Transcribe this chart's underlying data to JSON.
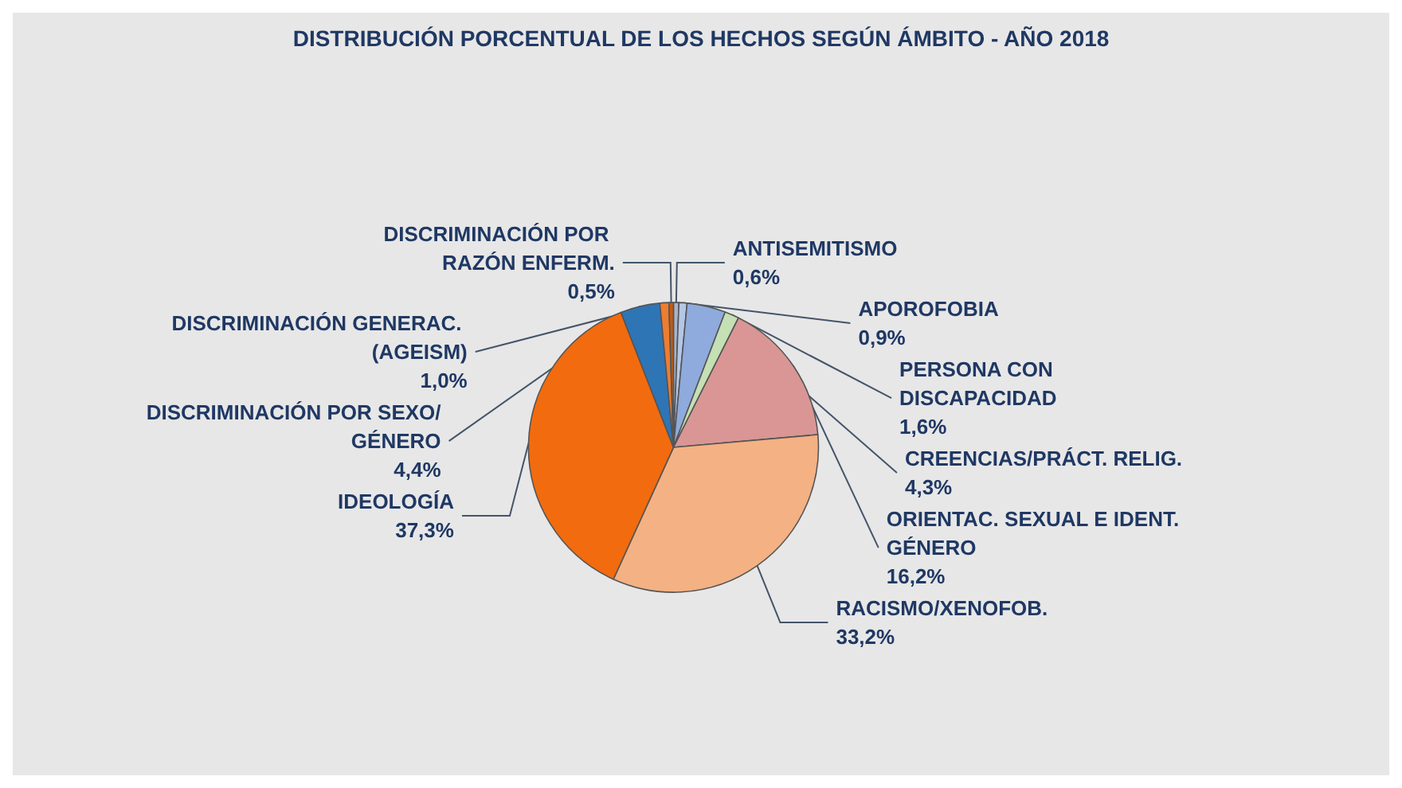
{
  "chart_data": {
    "type": "pie",
    "title": "DISTRIBUCIÓN PORCENTUAL DE LOS HECHOS SEGÚN ÁMBITO - AÑO 2018",
    "categories": [
      "ANTISEMITISMO",
      "APOROFOBIA",
      "CREENCIAS/PRÁCT. RELIG.",
      "PERSONA CON DISCAPACIDAD",
      "ORIENTAC. SEXUAL E IDENT. GÉNERO",
      "RACISMO/XENOFOB.",
      "IDEOLOGÍA",
      "DISCRIMINACIÓN POR SEXO/GÉNERO",
      "DISCRIMINACIÓN GENERAC. (AGEISM)",
      "DISCRIMINACIÓN POR RAZÓN ENFERM."
    ],
    "values": [
      0.6,
      0.9,
      4.3,
      1.6,
      16.2,
      33.2,
      37.3,
      4.4,
      1.0,
      0.5
    ],
    "value_labels": [
      "0,6%",
      "0,9%",
      "4,3%",
      "1,6%",
      "16,2%",
      "33,2%",
      "37,3%",
      "4,4%",
      "1,0%",
      "0,5%"
    ],
    "colors": [
      "#a9b4c6",
      "#b4c7e7",
      "#8faadc",
      "#c5e0b4",
      "#d99694",
      "#f4b183",
      "#f26b0f",
      "#2e75b6",
      "#ed7d31",
      "#c55a11"
    ],
    "legend": false
  }
}
